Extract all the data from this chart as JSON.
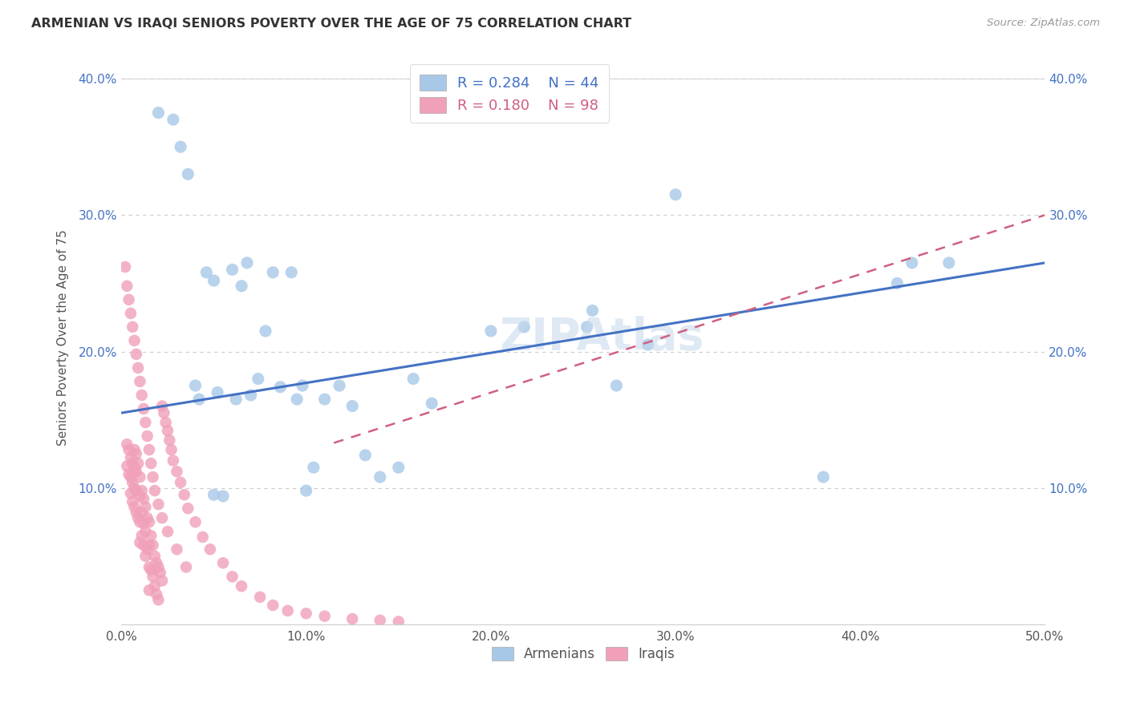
{
  "title": "ARMENIAN VS IRAQI SENIORS POVERTY OVER THE AGE OF 75 CORRELATION CHART",
  "source": "Source: ZipAtlas.com",
  "ylabel": "Seniors Poverty Over the Age of 75",
  "xlim": [
    0.0,
    0.5
  ],
  "ylim": [
    0.0,
    0.42
  ],
  "xticks": [
    0.0,
    0.1,
    0.2,
    0.3,
    0.4,
    0.5
  ],
  "yticks": [
    0.0,
    0.1,
    0.2,
    0.3,
    0.4
  ],
  "xtick_labels": [
    "0.0%",
    "10.0%",
    "20.0%",
    "30.0%",
    "40.0%",
    "50.0%"
  ],
  "ytick_labels": [
    "",
    "10.0%",
    "20.0%",
    "30.0%",
    "40.0%"
  ],
  "armenian_R": 0.284,
  "armenian_N": 44,
  "iraqi_R": 0.18,
  "iraqi_N": 98,
  "armenian_color": "#a8c8e8",
  "iraqi_color": "#f0a0b8",
  "armenian_line_color": "#4472C4",
  "iraqi_line_color": "#d06080",
  "grid_color": "#cccccc",
  "armenians_x": [
    0.02,
    0.028,
    0.032,
    0.036,
    0.04,
    0.042,
    0.046,
    0.05,
    0.052,
    0.055,
    0.06,
    0.062,
    0.065,
    0.068,
    0.07,
    0.074,
    0.078,
    0.082,
    0.086,
    0.092,
    0.095,
    0.098,
    0.1,
    0.104,
    0.11,
    0.118,
    0.125,
    0.132,
    0.14,
    0.15,
    0.158,
    0.168,
    0.2,
    0.218,
    0.252,
    0.268,
    0.285,
    0.3,
    0.38,
    0.42,
    0.428,
    0.448,
    0.255,
    0.05
  ],
  "armenians_y": [
    0.375,
    0.37,
    0.35,
    0.33,
    0.175,
    0.165,
    0.258,
    0.252,
    0.17,
    0.094,
    0.26,
    0.165,
    0.248,
    0.265,
    0.168,
    0.18,
    0.215,
    0.258,
    0.174,
    0.258,
    0.165,
    0.175,
    0.098,
    0.115,
    0.165,
    0.175,
    0.16,
    0.124,
    0.108,
    0.115,
    0.18,
    0.162,
    0.215,
    0.218,
    0.218,
    0.175,
    0.205,
    0.315,
    0.108,
    0.25,
    0.265,
    0.265,
    0.23,
    0.095
  ],
  "iraqis_x": [
    0.003,
    0.003,
    0.004,
    0.004,
    0.005,
    0.005,
    0.005,
    0.006,
    0.006,
    0.006,
    0.007,
    0.007,
    0.007,
    0.007,
    0.008,
    0.008,
    0.008,
    0.008,
    0.009,
    0.009,
    0.01,
    0.01,
    0.01,
    0.01,
    0.011,
    0.011,
    0.011,
    0.012,
    0.012,
    0.012,
    0.013,
    0.013,
    0.013,
    0.014,
    0.014,
    0.015,
    0.015,
    0.015,
    0.015,
    0.016,
    0.016,
    0.017,
    0.017,
    0.018,
    0.018,
    0.019,
    0.019,
    0.02,
    0.02,
    0.021,
    0.022,
    0.022,
    0.023,
    0.024,
    0.025,
    0.026,
    0.027,
    0.028,
    0.03,
    0.032,
    0.034,
    0.036,
    0.04,
    0.044,
    0.048,
    0.055,
    0.06,
    0.065,
    0.075,
    0.082,
    0.09,
    0.1,
    0.11,
    0.125,
    0.14,
    0.15,
    0.002,
    0.003,
    0.004,
    0.005,
    0.006,
    0.007,
    0.008,
    0.009,
    0.01,
    0.011,
    0.012,
    0.013,
    0.014,
    0.015,
    0.016,
    0.017,
    0.018,
    0.02,
    0.022,
    0.025,
    0.03,
    0.035
  ],
  "iraqis_y": [
    0.132,
    0.116,
    0.128,
    0.11,
    0.122,
    0.108,
    0.096,
    0.118,
    0.104,
    0.09,
    0.128,
    0.115,
    0.1,
    0.086,
    0.125,
    0.112,
    0.098,
    0.082,
    0.118,
    0.078,
    0.108,
    0.094,
    0.075,
    0.06,
    0.098,
    0.082,
    0.065,
    0.092,
    0.074,
    0.058,
    0.086,
    0.068,
    0.05,
    0.078,
    0.055,
    0.075,
    0.058,
    0.042,
    0.025,
    0.065,
    0.04,
    0.058,
    0.035,
    0.05,
    0.028,
    0.045,
    0.022,
    0.042,
    0.018,
    0.038,
    0.16,
    0.032,
    0.155,
    0.148,
    0.142,
    0.135,
    0.128,
    0.12,
    0.112,
    0.104,
    0.095,
    0.085,
    0.075,
    0.064,
    0.055,
    0.045,
    0.035,
    0.028,
    0.02,
    0.014,
    0.01,
    0.008,
    0.006,
    0.004,
    0.003,
    0.002,
    0.262,
    0.248,
    0.238,
    0.228,
    0.218,
    0.208,
    0.198,
    0.188,
    0.178,
    0.168,
    0.158,
    0.148,
    0.138,
    0.128,
    0.118,
    0.108,
    0.098,
    0.088,
    0.078,
    0.068,
    0.055,
    0.042
  ],
  "arm_line_x0": 0.0,
  "arm_line_x1": 0.5,
  "arm_line_y0": 0.155,
  "arm_line_y1": 0.265,
  "irq_line_x0": 0.115,
  "irq_line_x1": 0.5,
  "irq_line_y0": 0.133,
  "irq_line_y1": 0.3
}
